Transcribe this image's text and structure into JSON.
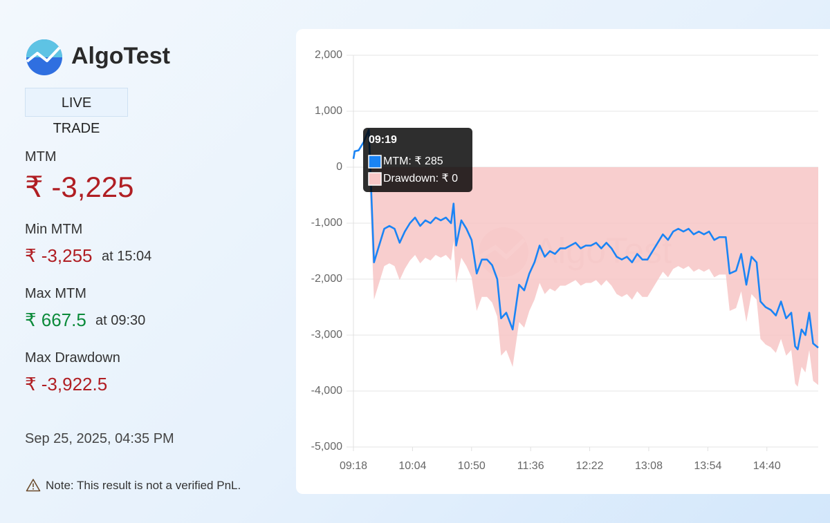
{
  "brand": "AlgoTest",
  "badge": "LIVE",
  "mode": "TRADE",
  "stats": [
    {
      "label": "MTM",
      "value": "₹ -3,225"
    },
    {
      "label": "Min MTM",
      "value": "₹ -3,255",
      "at": "at 15:04"
    },
    {
      "label": "Max MTM",
      "value": "₹ 667.5",
      "at": "at 09:30"
    },
    {
      "label": "Max Drawdown",
      "value": "₹ -3,922.5"
    }
  ],
  "timestamp": "Sep 25, 2025, 04:35 PM",
  "note": "Note: This result is not a verified PnL.",
  "chart_data": {
    "type": "line",
    "watermark": "AlgoTest",
    "x": [
      558,
      559,
      562,
      566,
      570,
      574,
      578,
      582,
      586,
      590,
      594,
      598,
      602,
      606,
      610,
      614,
      618,
      622,
      626,
      630,
      634,
      636,
      638,
      642,
      646,
      650,
      654,
      658,
      662,
      666,
      670,
      673,
      677,
      682,
      687,
      691,
      695,
      699,
      703,
      707,
      711,
      715,
      719,
      723,
      727,
      731,
      735,
      739,
      743,
      747,
      751,
      755,
      759,
      763,
      767,
      771,
      775,
      779,
      783,
      787,
      791,
      795,
      799,
      803,
      807,
      811,
      815,
      819,
      823,
      827,
      831,
      835,
      839,
      843,
      848,
      851,
      856,
      860,
      864,
      868,
      872,
      875,
      879,
      883,
      887,
      891,
      895,
      899,
      902,
      904,
      907,
      910,
      913,
      916,
      920
    ],
    "xlim": [
      558,
      920
    ],
    "xticks": [
      {
        "value": 558,
        "label": "09:18"
      },
      {
        "value": 604,
        "label": "10:04"
      },
      {
        "value": 650,
        "label": "10:50"
      },
      {
        "value": 696,
        "label": "11:36"
      },
      {
        "value": 742,
        "label": "12:22"
      },
      {
        "value": 788,
        "label": "13:08"
      },
      {
        "value": 834,
        "label": "13:54"
      },
      {
        "value": 880,
        "label": "14:40"
      }
    ],
    "ylim": [
      -5000,
      2000
    ],
    "yticks": [
      {
        "value": 2000,
        "label": "2,000"
      },
      {
        "value": 1000,
        "label": "1,000"
      },
      0,
      {
        "value": -1000,
        "label": "-1,000"
      },
      {
        "value": -2000,
        "label": "-2,000"
      },
      {
        "value": -3000,
        "label": "-3,000"
      },
      {
        "value": -4000,
        "label": "-4,000"
      },
      {
        "value": -5000,
        "label": "-5,000"
      }
    ],
    "grid": true,
    "series": [
      {
        "color": "#1a84f5",
        "values": [
          150,
          285,
          300,
          450,
          667.5,
          -1700,
          -1400,
          -1100,
          -1050,
          -1100,
          -1350,
          -1150,
          -1000,
          -900,
          -1050,
          -950,
          -1000,
          -900,
          -950,
          -900,
          -1000,
          -650,
          -1400,
          -950,
          -1100,
          -1300,
          -1900,
          -1650,
          -1650,
          -1750,
          -2000,
          -2700,
          -2600,
          -2900,
          -2100,
          -2200,
          -1900,
          -1700,
          -1400,
          -1600,
          -1500,
          -1550,
          -1450,
          -1450,
          -1400,
          -1350,
          -1450,
          -1400,
          -1400,
          -1350,
          -1450,
          -1350,
          -1450,
          -1600,
          -1650,
          -1600,
          -1700,
          -1550,
          -1650,
          -1650,
          -1500,
          -1350,
          -1200,
          -1300,
          -1150,
          -1100,
          -1150,
          -1100,
          -1200,
          -1150,
          -1200,
          -1150,
          -1300,
          -1250,
          -1250,
          -1900,
          -1850,
          -1550,
          -2100,
          -1600,
          -1700,
          -2400,
          -2500,
          -2550,
          -2650,
          -2400,
          -2700,
          -2600,
          -3200,
          -3255,
          -2900,
          -3000,
          -2600,
          -3150,
          -3225
        ]
      },
      {
        "color": "#f7c6c6",
        "area": true,
        "values": [
          0,
          0,
          0,
          0,
          0,
          -2367.5,
          -2067.5,
          -1767.5,
          -1717.5,
          -1767.5,
          -2017.5,
          -1817.5,
          -1667.5,
          -1567.5,
          -1717.5,
          -1617.5,
          -1667.5,
          -1567.5,
          -1617.5,
          -1567.5,
          -1667.5,
          -1317.5,
          -2067.5,
          -1617.5,
          -1767.5,
          -1967.5,
          -2567.5,
          -2317.5,
          -2317.5,
          -2417.5,
          -2667.5,
          -3367.5,
          -3267.5,
          -3567.5,
          -2767.5,
          -2867.5,
          -2567.5,
          -2367.5,
          -2067.5,
          -2267.5,
          -2167.5,
          -2217.5,
          -2117.5,
          -2117.5,
          -2067.5,
          -2017.5,
          -2117.5,
          -2067.5,
          -2067.5,
          -2017.5,
          -2117.5,
          -2017.5,
          -2117.5,
          -2267.5,
          -2317.5,
          -2267.5,
          -2367.5,
          -2217.5,
          -2317.5,
          -2317.5,
          -2167.5,
          -2017.5,
          -1867.5,
          -1967.5,
          -1817.5,
          -1767.5,
          -1817.5,
          -1767.5,
          -1867.5,
          -1817.5,
          -1867.5,
          -1817.5,
          -1967.5,
          -1917.5,
          -1917.5,
          -2567.5,
          -2517.5,
          -2217.5,
          -2767.5,
          -2267.5,
          -2367.5,
          -3067.5,
          -3167.5,
          -3217.5,
          -3317.5,
          -3067.5,
          -3367.5,
          -3267.5,
          -3867.5,
          -3922.5,
          -3567.5,
          -3667.5,
          -3267.5,
          -3817.5,
          -3892.5
        ]
      }
    ],
    "tooltip": {
      "title": "09:19",
      "lines": [
        "MTM: ₹ 285",
        "Drawdown: ₹ 0"
      ]
    }
  }
}
